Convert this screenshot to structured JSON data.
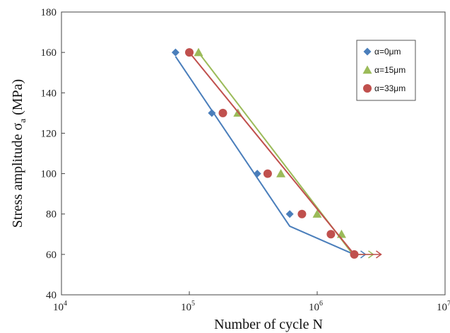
{
  "chart_data": {
    "type": "scatter",
    "xlabel": "Number of cycle N",
    "ylabel_main": "Stress amplitude σ",
    "ylabel_sub": "a",
    "ylabel_unit": "(MPa)",
    "x_scale": "log",
    "xlim": [
      10000,
      10000000
    ],
    "ylim": [
      40,
      180
    ],
    "x_ticks": [
      {
        "base": "10",
        "exp": "4",
        "value": 10000
      },
      {
        "base": "10",
        "exp": "5",
        "value": 100000
      },
      {
        "base": "10",
        "exp": "6",
        "value": 1000000
      },
      {
        "base": "10",
        "exp": "7",
        "value": 10000000
      }
    ],
    "y_ticks": [
      {
        "label": "40",
        "value": 40
      },
      {
        "label": "60",
        "value": 60
      },
      {
        "label": "80",
        "value": 80
      },
      {
        "label": "100",
        "value": 100
      },
      {
        "label": "120",
        "value": 120
      },
      {
        "label": "140",
        "value": 140
      },
      {
        "label": "160",
        "value": 160
      },
      {
        "label": "180",
        "value": 180
      }
    ],
    "grid": false,
    "legend_position": "top-right",
    "series": [
      {
        "name": "α=0μm",
        "color": "#4a7ebb",
        "marker": "diamond",
        "points": [
          {
            "x": 78000,
            "y": 160
          },
          {
            "x": 150000,
            "y": 130
          },
          {
            "x": 340000,
            "y": 100
          },
          {
            "x": 610000,
            "y": 80
          }
        ],
        "fit": [
          {
            "x": 78000,
            "y": 158
          },
          {
            "x": 610000,
            "y": 74
          },
          {
            "x": 1950000,
            "y": 60
          }
        ],
        "runout": {
          "x": 1950000,
          "y": 60
        }
      },
      {
        "name": "α=15μm",
        "color": "#9bbb59",
        "marker": "triangle",
        "points": [
          {
            "x": 118000,
            "y": 160
          },
          {
            "x": 240000,
            "y": 130
          },
          {
            "x": 520000,
            "y": 100
          },
          {
            "x": 1000000,
            "y": 80
          },
          {
            "x": 1550000,
            "y": 70
          }
        ],
        "fit": [
          {
            "x": 118000,
            "y": 160
          },
          {
            "x": 1850000,
            "y": 61
          }
        ],
        "runout": {
          "x": 1950000,
          "y": 60
        }
      },
      {
        "name": "α=33μm",
        "color": "#c0504d",
        "marker": "circle",
        "points": [
          {
            "x": 100000,
            "y": 160
          },
          {
            "x": 183000,
            "y": 130
          },
          {
            "x": 410000,
            "y": 100
          },
          {
            "x": 760000,
            "y": 80
          },
          {
            "x": 1280000,
            "y": 70
          },
          {
            "x": 1950000,
            "y": 60
          }
        ],
        "fit": [
          {
            "x": 100000,
            "y": 160
          },
          {
            "x": 1950000,
            "y": 60
          }
        ],
        "runout": {
          "x": 1950000,
          "y": 60
        }
      }
    ]
  }
}
